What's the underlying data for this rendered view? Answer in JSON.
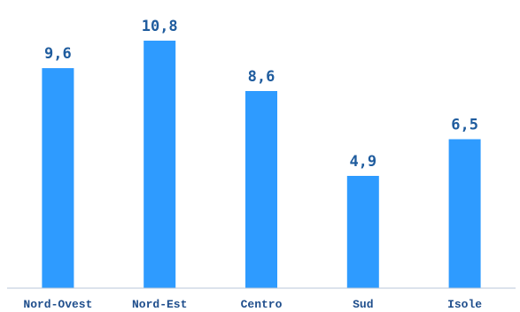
{
  "colors": {
    "bar": "#2E9BFF",
    "value_label": "#1F5C9E",
    "category_label": "#1F4E8C",
    "axis": "#B8C7D9"
  },
  "chart_data": {
    "type": "bar",
    "categories": [
      "Nord-Ovest",
      "Nord-Est",
      "Centro",
      "Sud",
      "Isole"
    ],
    "values": [
      9.6,
      10.8,
      8.6,
      4.9,
      6.5
    ],
    "value_labels": [
      "9,6",
      "10,8",
      "8,6",
      "4,9",
      "6,5"
    ],
    "ylim": [
      0,
      12
    ],
    "grid": false,
    "legend": "none"
  }
}
